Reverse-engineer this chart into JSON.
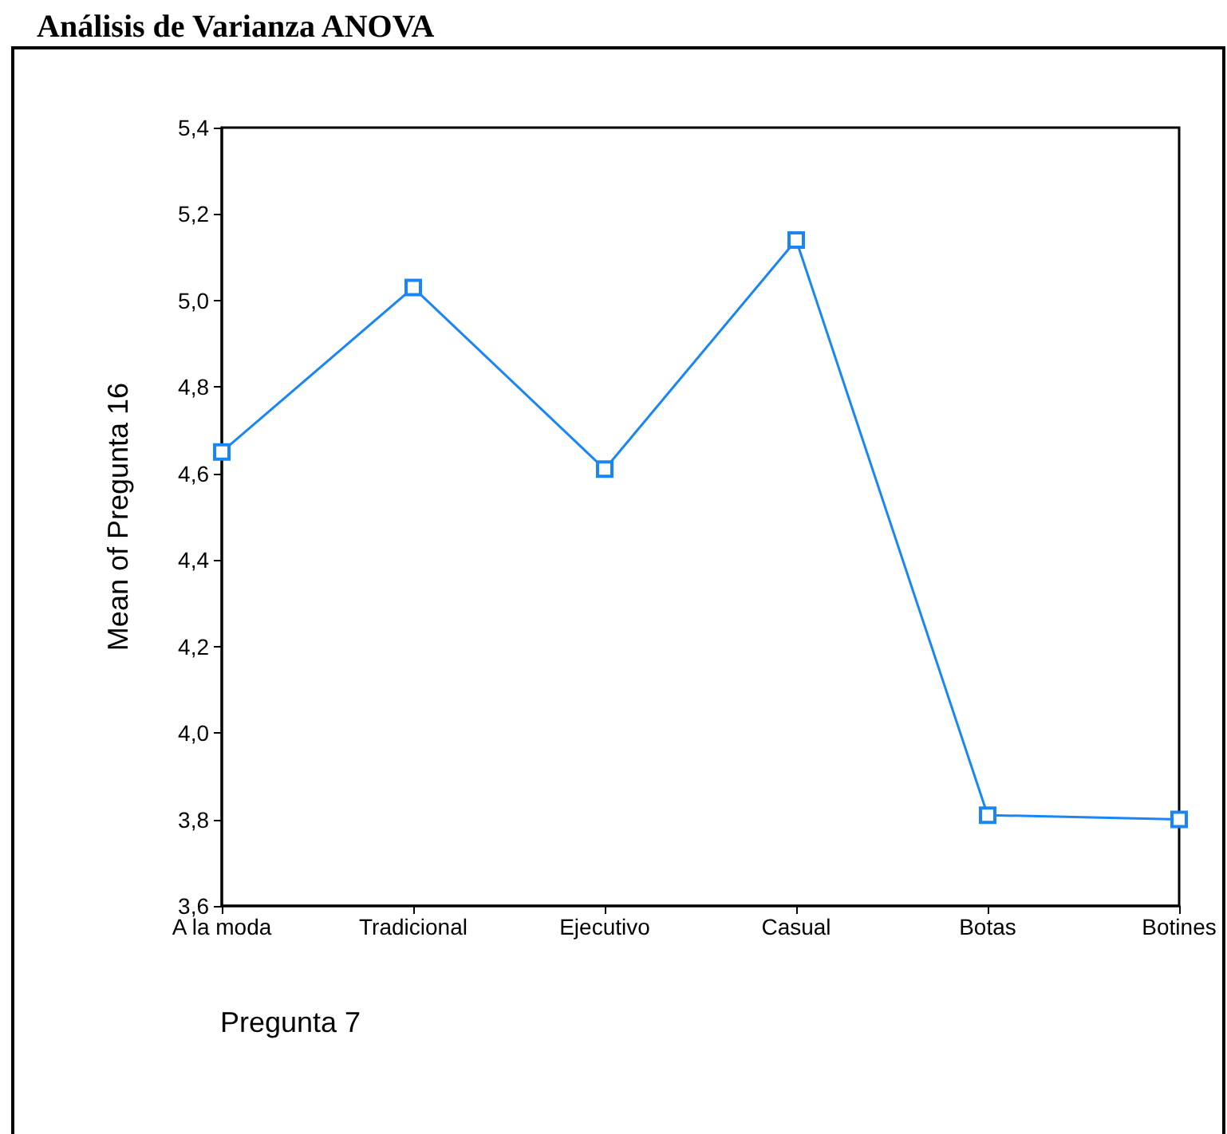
{
  "chart_data": {
    "type": "line",
    "title": "Análisis de Varianza ANOVA",
    "xlabel": "Pregunta 7",
    "ylabel": "Mean of Pregunta 16",
    "categories": [
      "A la moda",
      "Tradicional",
      "Ejecutivo",
      "Casual",
      "Botas",
      "Botines"
    ],
    "series": [
      {
        "color": "#1a86f5",
        "values": [
          4.65,
          5.03,
          4.61,
          5.14,
          3.81,
          3.8
        ]
      }
    ],
    "ylim": [
      3.6,
      5.4
    ],
    "yticks": [
      {
        "value": 3.6,
        "label": "3,6"
      },
      {
        "value": 3.8,
        "label": "3,8"
      },
      {
        "value": 4.0,
        "label": "4,0"
      },
      {
        "value": 4.2,
        "label": "4,2"
      },
      {
        "value": 4.4,
        "label": "4,4"
      },
      {
        "value": 4.6,
        "label": "4,6"
      },
      {
        "value": 4.8,
        "label": "4,8"
      },
      {
        "value": 5.0,
        "label": "5,0"
      },
      {
        "value": 5.2,
        "label": "5,2"
      },
      {
        "value": 5.4,
        "label": "5,4"
      }
    ],
    "marker": "square",
    "line_style": "solid",
    "grid": false
  }
}
